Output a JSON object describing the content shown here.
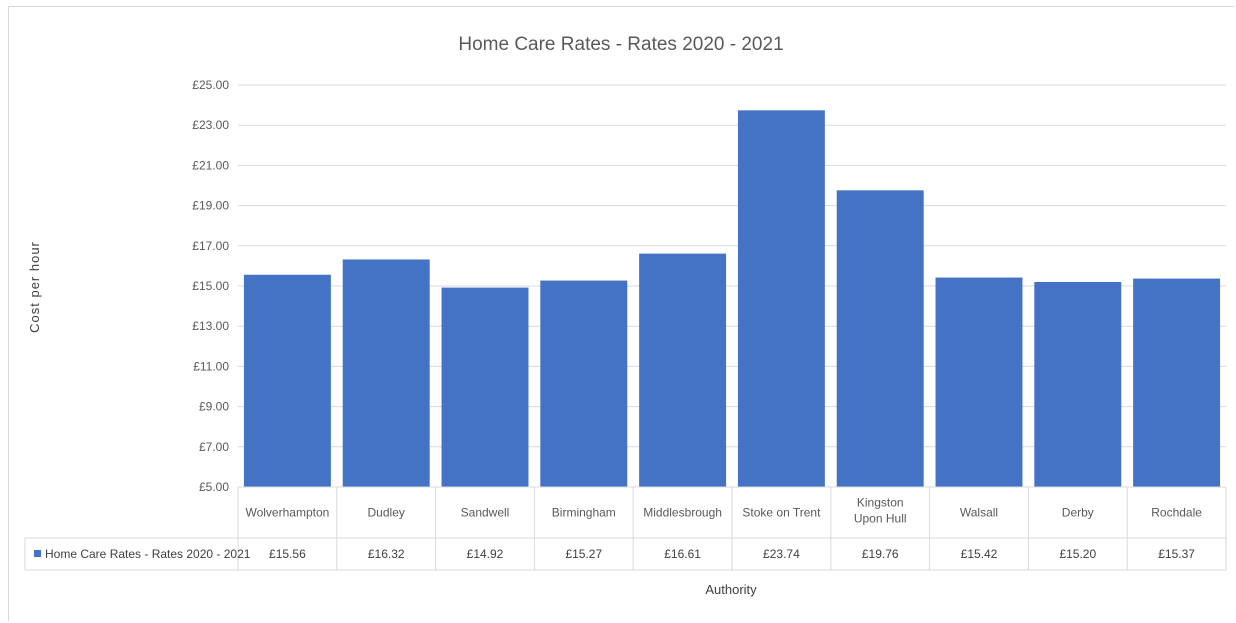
{
  "chart_data": {
    "type": "bar",
    "title": "Home  Care Rates - Rates 2020 - 2021",
    "xlabel": "Authority",
    "ylabel": "Cost per hour",
    "ylim": [
      5,
      25
    ],
    "yticks": [
      "£5.00",
      "£7.00",
      "£9.00",
      "£11.00",
      "£13.00",
      "£15.00",
      "£17.00",
      "£19.00",
      "£21.00",
      "£23.00",
      "£25.00"
    ],
    "grid": true,
    "legend": "data-table",
    "categories": [
      "Wolverhampton",
      "Dudley",
      "Sandwell",
      "Birmingham",
      "Middlesbrough",
      "Stoke on Trent",
      "Kingston Upon Hull",
      "Walsall",
      "Derby",
      "Rochdale"
    ],
    "series": [
      {
        "name": "Home  Care Rates - Rates 2020 - 2021",
        "color": "#4472c4",
        "values": [
          15.56,
          16.32,
          14.92,
          15.27,
          16.61,
          23.74,
          19.76,
          15.42,
          15.2,
          15.37
        ],
        "labels": [
          "£15.56",
          "£16.32",
          "£14.92",
          "£15.27",
          "£16.61",
          "£23.74",
          "£19.76",
          "£15.42",
          "£15.20",
          "£15.37"
        ]
      }
    ]
  }
}
